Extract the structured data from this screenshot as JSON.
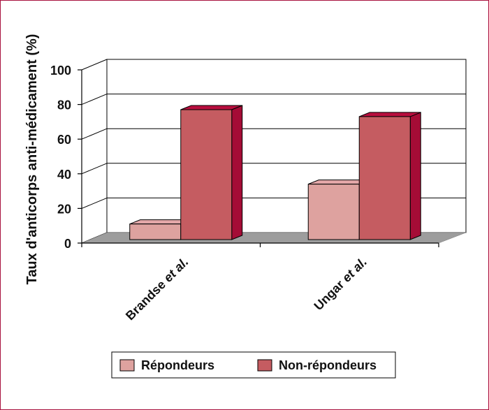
{
  "chart_data": {
    "type": "bar",
    "title": "",
    "xlabel": "",
    "ylabel": "Taux d'anticorps anti-médicament (%)",
    "ylim": [
      0,
      100
    ],
    "yticks": [
      "0",
      "20",
      "40",
      "60",
      "80",
      "100"
    ],
    "grid": true,
    "three_d": true,
    "legend_position": "bottom",
    "categories": [
      "Brandse et al.",
      "Ungar et al."
    ],
    "category_labels": [
      {
        "main": "Brandse ",
        "italic": "et al."
      },
      {
        "main": "Ungar ",
        "italic": "et al."
      }
    ],
    "series": [
      {
        "name": "Répondeurs",
        "values": [
          9,
          32
        ],
        "color": "#dea29f",
        "top_color": "#e3a7a8",
        "side_color": "#c4787c"
      },
      {
        "name": "Non-répondeurs",
        "values": [
          75,
          71
        ],
        "color": "#c55c61",
        "top_color": "#b80e3e",
        "side_color": "#a50c36"
      }
    ],
    "floor_color": "#9d9d9d"
  }
}
